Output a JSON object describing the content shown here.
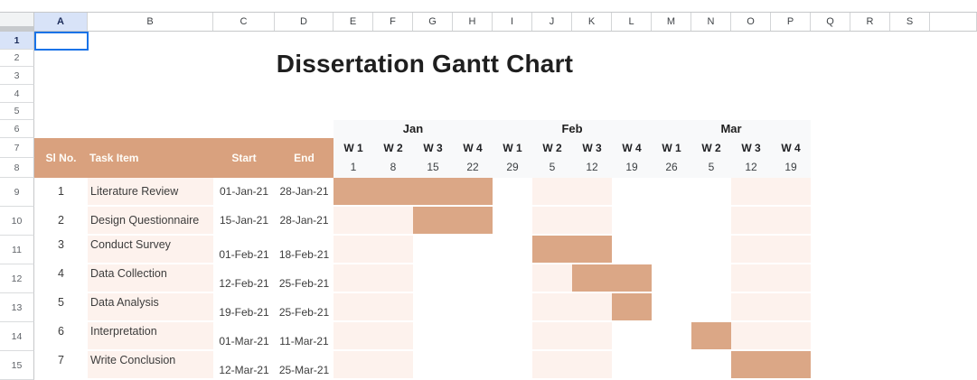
{
  "sheet": {
    "title_text": "Dissertation Gantt Chart",
    "selected_cell": "A1",
    "selected_column": "A",
    "selected_row": "1",
    "column_letters": [
      "A",
      "B",
      "C",
      "D",
      "E",
      "F",
      "G",
      "H",
      "I",
      "J",
      "K",
      "L",
      "M",
      "N",
      "O",
      "P",
      "Q",
      "R",
      "S"
    ],
    "row_numbers": [
      "1",
      "2",
      "3",
      "4",
      "5",
      "6",
      "7",
      "8",
      "9",
      "10",
      "11",
      "12",
      "13",
      "14",
      "15"
    ]
  },
  "gantt": {
    "headers": {
      "sl_no": "Sl No.",
      "task_item": "Task Item",
      "start": "Start",
      "end": "End"
    },
    "months": [
      {
        "label": "Jan",
        "weeks_span": 4
      },
      {
        "label": "Feb",
        "weeks_span": 4
      },
      {
        "label": "Mar",
        "weeks_span": 4
      }
    ],
    "weeks": [
      {
        "label": "W 1",
        "day": "1"
      },
      {
        "label": "W 2",
        "day": "8"
      },
      {
        "label": "W 3",
        "day": "15"
      },
      {
        "label": "W 4",
        "day": "22"
      },
      {
        "label": "W 1",
        "day": "29"
      },
      {
        "label": "W 2",
        "day": "5"
      },
      {
        "label": "W 3",
        "day": "12"
      },
      {
        "label": "W 4",
        "day": "19"
      },
      {
        "label": "W 1",
        "day": "26"
      },
      {
        "label": "W 2",
        "day": "5"
      },
      {
        "label": "W 3",
        "day": "12"
      },
      {
        "label": "W 4",
        "day": "19"
      }
    ],
    "shaded_week_columns": [
      0,
      1,
      5,
      6,
      10,
      11
    ],
    "tasks": [
      {
        "sl_no": "1",
        "name": "Literature Review",
        "start": "01-Jan-21",
        "end": "28-Jan-21",
        "bar_start_week": 0,
        "bar_end_week": 3
      },
      {
        "sl_no": "2",
        "name": "Design Questionnaire",
        "start": "15-Jan-21",
        "end": "28-Jan-21",
        "bar_start_week": 2,
        "bar_end_week": 3
      },
      {
        "sl_no": "3",
        "name": "Conduct Survey",
        "start": "01-Feb-21",
        "end": "18-Feb-21",
        "bar_start_week": 5,
        "bar_end_week": 6
      },
      {
        "sl_no": "4",
        "name": "Data Collection",
        "start": "12-Feb-21",
        "end": "25-Feb-21",
        "bar_start_week": 6,
        "bar_end_week": 7
      },
      {
        "sl_no": "5",
        "name": "Data Analysis",
        "start": "19-Feb-21",
        "end": "25-Feb-21",
        "bar_start_week": 7,
        "bar_end_week": 7
      },
      {
        "sl_no": "6",
        "name": "Interpretation",
        "start": "01-Mar-21",
        "end": "11-Mar-21",
        "bar_start_week": 9,
        "bar_end_week": 9
      },
      {
        "sl_no": "7",
        "name": "Write Conclusion",
        "start": "12-Mar-21",
        "end": "25-Mar-21",
        "bar_start_week": 10,
        "bar_end_week": 11
      }
    ]
  },
  "colors": {
    "header_band_bg": "#d9a17e",
    "bar_fill": "#dba786",
    "shaded_column_bg": "#fdf2ed",
    "task_column_bg": "#fdf2ed",
    "selection_border": "#1a73e8",
    "selected_header_bg": "#d8e3f8",
    "week_header_bg": "#f8f9fa"
  }
}
